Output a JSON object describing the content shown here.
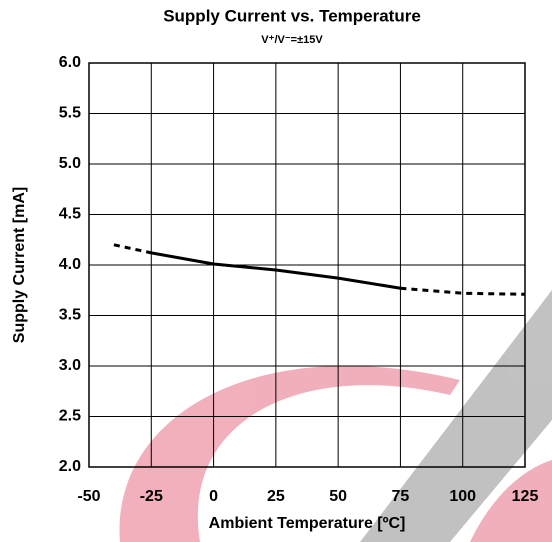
{
  "chart_data": {
    "type": "line",
    "title": "Supply Current vs. Temperature",
    "subtitle": "V⁺/V⁻=±15V",
    "xlabel": "Ambient Temperature [ºC]",
    "ylabel": "Supply Current [mA]",
    "x": [
      -40,
      -25,
      0,
      25,
      50,
      75,
      100,
      125
    ],
    "series": [
      {
        "color": "#000000",
        "style": "solid",
        "values": [
          null,
          4.12,
          4.01,
          3.95,
          3.87,
          3.77,
          null,
          null
        ]
      },
      {
        "color": "#000000",
        "style": "dashed",
        "values": [
          4.2,
          4.12,
          null,
          null,
          null,
          3.77,
          3.72,
          3.71
        ]
      }
    ],
    "xlim": [
      -50,
      125
    ],
    "xticks": [
      -50,
      -25,
      0,
      25,
      50,
      75,
      100,
      125
    ],
    "ylim": [
      2.0,
      6.0
    ],
    "yticks": [
      {
        "value": 2.0,
        "label": "2.0"
      },
      {
        "value": 2.5,
        "label": "2.5"
      },
      {
        "value": 3.0,
        "label": "3.0"
      },
      {
        "value": 3.5,
        "label": "3.5"
      },
      {
        "value": 4.0,
        "label": "4.0"
      },
      {
        "value": 4.5,
        "label": "4.5"
      },
      {
        "value": 5.0,
        "label": "5.0"
      },
      {
        "value": 5.5,
        "label": "5.5"
      },
      {
        "value": 6.0,
        "label": "6.0"
      }
    ],
    "grid": true
  }
}
